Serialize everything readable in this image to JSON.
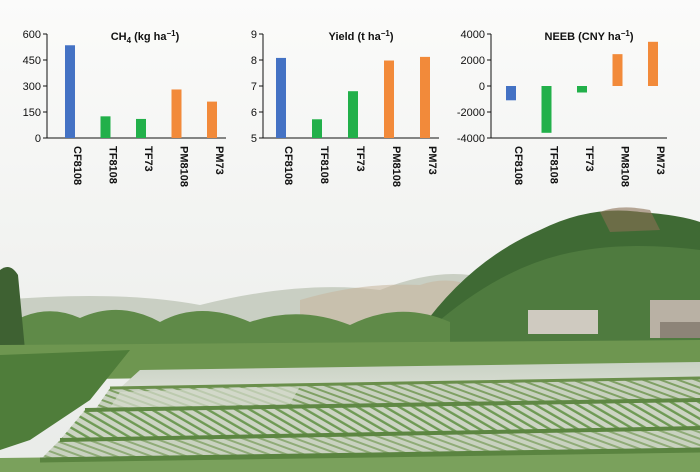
{
  "colors": {
    "CF": "#4472c4",
    "TF": "#22b04a",
    "PM": "#f28a3a"
  },
  "chart_data": [
    {
      "type": "bar",
      "title": "CH",
      "title_sub": "4",
      "title_unit": " (kg ha",
      "title_sup": "−1",
      "title_end": ")",
      "categories": [
        "CF8108",
        "TF8108",
        "TF73",
        "PM8108",
        "PM73"
      ],
      "values": [
        535,
        125,
        110,
        280,
        210
      ],
      "bar_colors": [
        "#4472c4",
        "#22b04a",
        "#22b04a",
        "#f28a3a",
        "#f28a3a"
      ],
      "ylim": [
        0,
        600
      ],
      "yticks": [
        "0",
        "150",
        "300",
        "450",
        "600"
      ],
      "ytick_values": [
        0,
        150,
        300,
        450,
        600
      ]
    },
    {
      "type": "bar",
      "title": "Yield",
      "title_sub": "",
      "title_unit": " (t ha",
      "title_sup": "−1",
      "title_end": ")",
      "categories": [
        "CF8108",
        "TF8108",
        "TF73",
        "PM8108",
        "PM73"
      ],
      "values": [
        8.08,
        5.72,
        6.8,
        7.98,
        8.12
      ],
      "bar_colors": [
        "#4472c4",
        "#22b04a",
        "#22b04a",
        "#f28a3a",
        "#f28a3a"
      ],
      "ylim": [
        5,
        9
      ],
      "yticks": [
        "5",
        "6",
        "7",
        "8",
        "9"
      ],
      "ytick_values": [
        5,
        6,
        7,
        8,
        9
      ]
    },
    {
      "type": "bar",
      "title": "NEEB",
      "title_sub": "",
      "title_unit": " (CNY ha",
      "title_sup": "−1",
      "title_end": ")",
      "categories": [
        "CF8108",
        "TF8108",
        "TF73",
        "PM8108",
        "PM73"
      ],
      "values": [
        -1100,
        -3600,
        -500,
        2450,
        3400
      ],
      "bar_colors": [
        "#4472c4",
        "#22b04a",
        "#22b04a",
        "#f28a3a",
        "#f28a3a"
      ],
      "ylim": [
        -4000,
        4000
      ],
      "yticks": [
        "-4000",
        "-2000",
        "0",
        "2000",
        "4000"
      ],
      "ytick_values": [
        -4000,
        -2000,
        0,
        2000,
        4000
      ]
    }
  ]
}
